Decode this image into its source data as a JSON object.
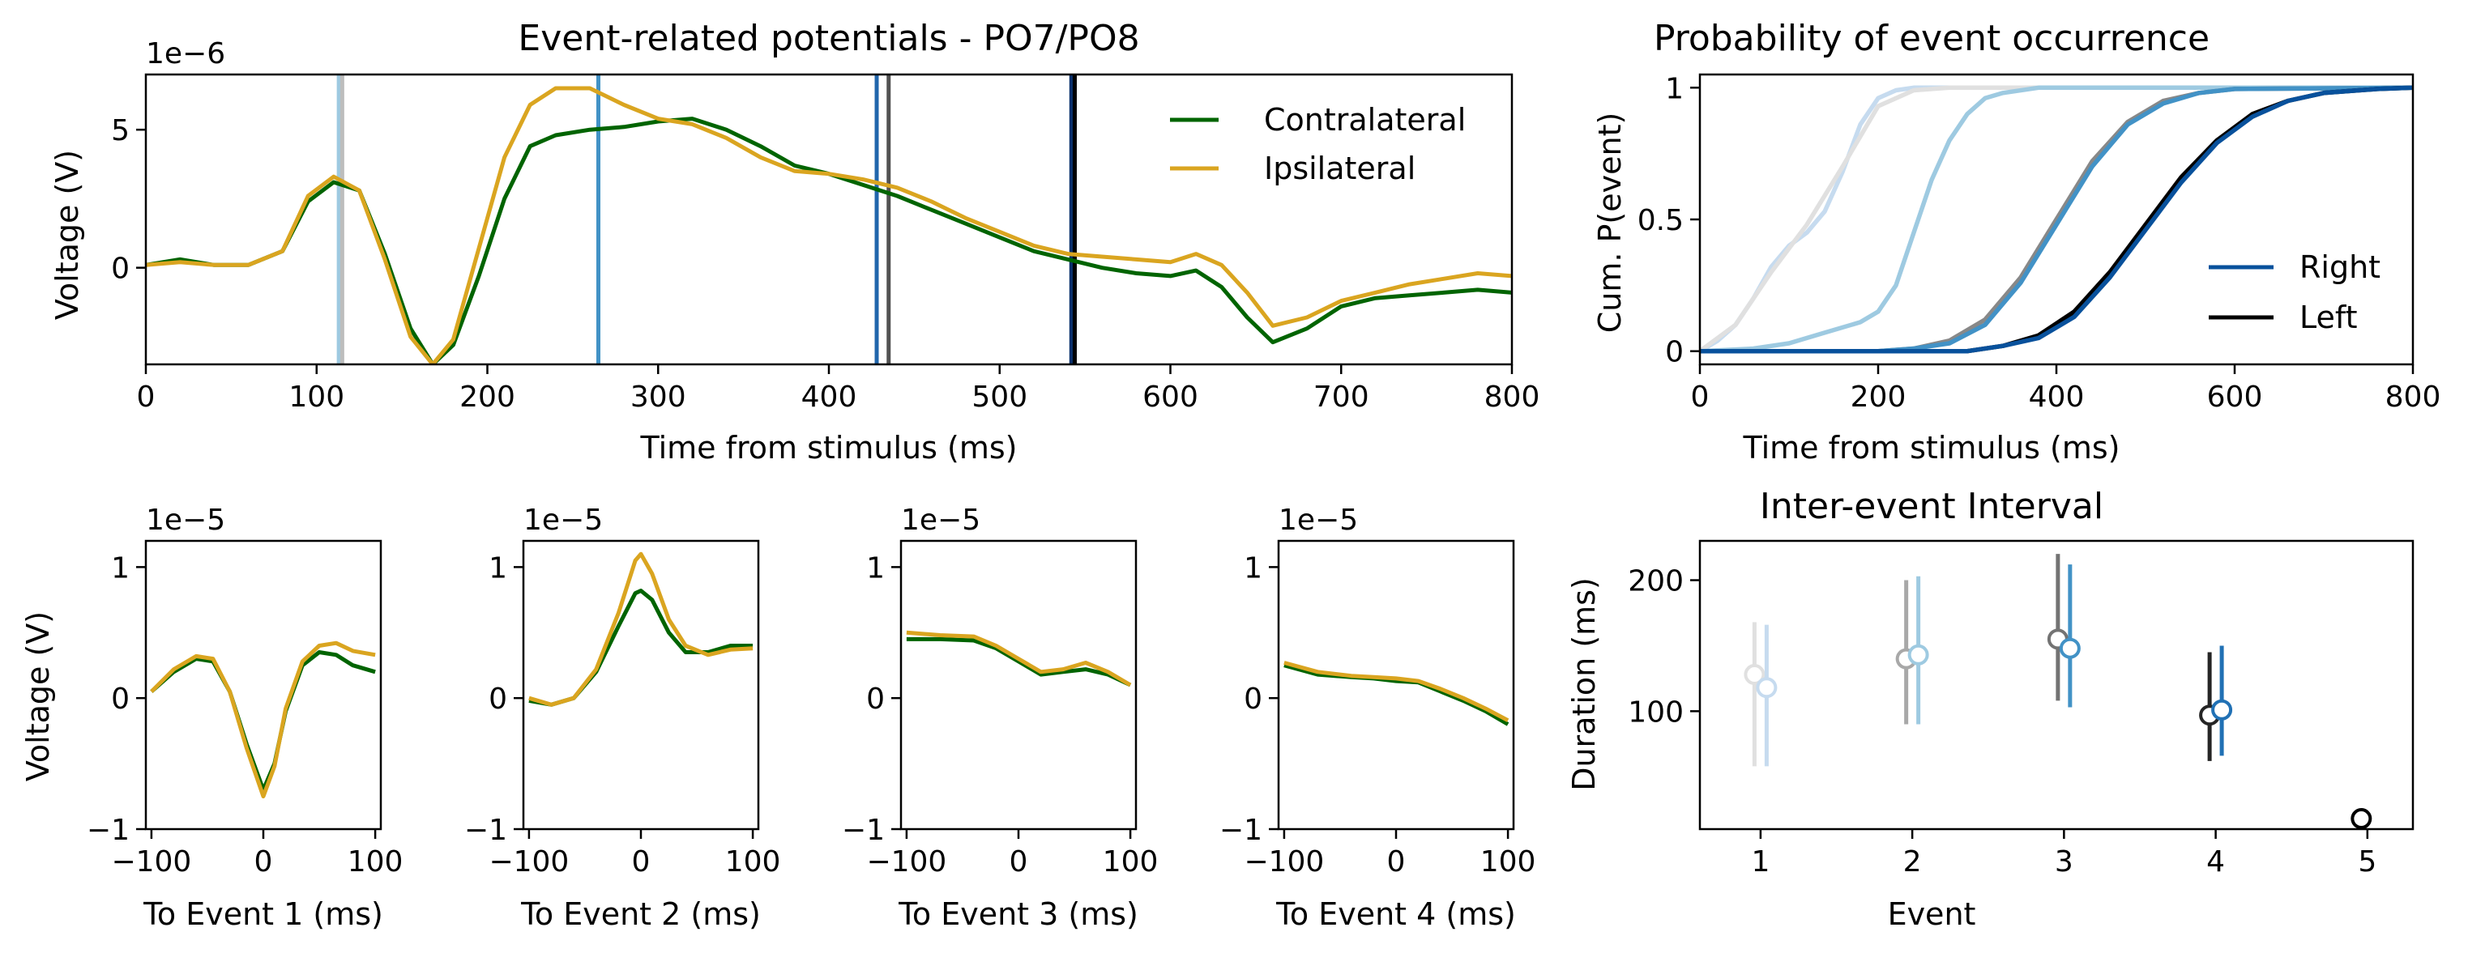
{
  "chart_data": [
    {
      "id": "erp",
      "type": "line",
      "title": "Event-related potentials - PO7/PO8",
      "xlabel": "Time from stimulus (ms)",
      "ylabel": "Voltage (V)",
      "offset_label": "1e−6",
      "xlim": [
        0,
        800
      ],
      "ylim": [
        -3.5,
        7
      ],
      "xticks": [
        0,
        100,
        200,
        300,
        400,
        500,
        600,
        700,
        800
      ],
      "yticks": [
        0,
        5
      ],
      "grid": false,
      "legend": "upper right",
      "series": [
        {
          "name": "Contralateral",
          "color": "#006400",
          "x": [
            0,
            20,
            40,
            60,
            80,
            95,
            110,
            125,
            140,
            155,
            168,
            180,
            195,
            210,
            225,
            240,
            260,
            280,
            300,
            320,
            340,
            360,
            380,
            400,
            420,
            440,
            460,
            480,
            500,
            520,
            540,
            560,
            580,
            600,
            615,
            630,
            645,
            660,
            680,
            700,
            720,
            740,
            760,
            780,
            800
          ],
          "y": [
            0.1,
            0.3,
            0.1,
            0.1,
            0.6,
            2.4,
            3.1,
            2.8,
            0.5,
            -2.2,
            -3.5,
            -2.8,
            -0.3,
            2.5,
            4.4,
            4.8,
            5.0,
            5.1,
            5.3,
            5.4,
            5.0,
            4.4,
            3.7,
            3.4,
            3.0,
            2.6,
            2.1,
            1.6,
            1.1,
            0.6,
            0.3,
            0.0,
            -0.2,
            -0.3,
            -0.1,
            -0.7,
            -1.8,
            -2.7,
            -2.2,
            -1.4,
            -1.1,
            -1.0,
            -0.9,
            -0.8,
            -0.9
          ]
        },
        {
          "name": "Ipsilateral",
          "color": "#DAA520",
          "x": [
            0,
            20,
            40,
            60,
            80,
            95,
            110,
            125,
            140,
            155,
            168,
            180,
            195,
            210,
            225,
            240,
            260,
            280,
            300,
            320,
            340,
            360,
            380,
            400,
            420,
            440,
            460,
            480,
            500,
            520,
            540,
            560,
            580,
            600,
            615,
            630,
            645,
            660,
            680,
            700,
            720,
            740,
            760,
            780,
            800
          ],
          "y": [
            0.1,
            0.2,
            0.1,
            0.1,
            0.6,
            2.6,
            3.3,
            2.8,
            0.3,
            -2.5,
            -3.5,
            -2.6,
            0.7,
            4.0,
            5.9,
            6.5,
            6.5,
            5.9,
            5.4,
            5.2,
            4.7,
            4.0,
            3.5,
            3.4,
            3.2,
            2.9,
            2.4,
            1.8,
            1.3,
            0.8,
            0.5,
            0.4,
            0.3,
            0.2,
            0.5,
            0.1,
            -0.9,
            -2.1,
            -1.8,
            -1.2,
            -0.9,
            -0.6,
            -0.4,
            -0.2,
            -0.3
          ]
        }
      ],
      "event_lines": [
        {
          "x": 113,
          "color": "#9ECAE1"
        },
        {
          "x": 115,
          "color": "#BDBDBD"
        },
        {
          "x": 265,
          "color": "#4292C6"
        },
        {
          "x": 428,
          "color": "#2166AC"
        },
        {
          "x": 435,
          "color": "#525252"
        },
        {
          "x": 542,
          "color": "#08306B"
        },
        {
          "x": 544,
          "color": "#000000"
        }
      ]
    },
    {
      "id": "cumprob",
      "type": "line",
      "title": "Probability of event occurrence",
      "xlabel": "Time from stimulus (ms)",
      "ylabel": "Cum. P(event)",
      "xlim": [
        0,
        800
      ],
      "ylim": [
        -0.05,
        1.05
      ],
      "xticks": [
        0,
        200,
        400,
        600,
        800
      ],
      "yticks": [
        0.0,
        0.5,
        1.0
      ],
      "legend": "lower right",
      "legend_entries": [
        {
          "name": "Right",
          "color": "#08519C"
        },
        {
          "name": "Left",
          "color": "#000000"
        }
      ],
      "series": [
        {
          "color": "#C6DBEF",
          "x": [
            0,
            20,
            40,
            60,
            80,
            100,
            120,
            140,
            160,
            180,
            200,
            220,
            240,
            260,
            800
          ],
          "y": [
            0,
            0.04,
            0.1,
            0.2,
            0.32,
            0.4,
            0.45,
            0.53,
            0.68,
            0.86,
            0.96,
            0.99,
            1.0,
            1.0,
            1.0
          ]
        },
        {
          "color": "#E0E0E0",
          "x": [
            0,
            40,
            80,
            120,
            160,
            200,
            240,
            280,
            800
          ],
          "y": [
            0,
            0.1,
            0.3,
            0.48,
            0.7,
            0.93,
            0.99,
            1.0,
            1.0
          ]
        },
        {
          "color": "#9ECAE1",
          "x": [
            0,
            60,
            100,
            140,
            180,
            200,
            220,
            240,
            260,
            280,
            300,
            320,
            340,
            380,
            420,
            800
          ],
          "y": [
            0,
            0.01,
            0.03,
            0.07,
            0.11,
            0.15,
            0.25,
            0.45,
            0.65,
            0.8,
            0.9,
            0.96,
            0.98,
            1.0,
            1.0,
            1.0
          ]
        },
        {
          "color": "#888888",
          "x": [
            0,
            200,
            240,
            280,
            320,
            360,
            400,
            440,
            480,
            520,
            560,
            600,
            800
          ],
          "y": [
            0,
            0.0,
            0.01,
            0.04,
            0.12,
            0.28,
            0.5,
            0.72,
            0.87,
            0.95,
            0.98,
            0.995,
            1.0
          ]
        },
        {
          "color": "#4292C6",
          "x": [
            0,
            200,
            240,
            280,
            320,
            360,
            400,
            440,
            480,
            520,
            560,
            600,
            800
          ],
          "y": [
            0,
            0.0,
            0.01,
            0.03,
            0.1,
            0.26,
            0.48,
            0.7,
            0.86,
            0.94,
            0.98,
            0.995,
            1.0
          ]
        },
        {
          "color": "#000000",
          "x": [
            0,
            300,
            340,
            380,
            420,
            460,
            500,
            540,
            580,
            620,
            660,
            700,
            760,
            800
          ],
          "y": [
            0,
            0.0,
            0.02,
            0.06,
            0.15,
            0.3,
            0.48,
            0.66,
            0.8,
            0.9,
            0.95,
            0.98,
            0.995,
            1.0
          ]
        },
        {
          "color": "#08519C",
          "x": [
            0,
            300,
            340,
            380,
            420,
            460,
            500,
            540,
            580,
            620,
            660,
            700,
            760,
            800
          ],
          "y": [
            0,
            0.0,
            0.02,
            0.05,
            0.13,
            0.28,
            0.46,
            0.64,
            0.79,
            0.89,
            0.95,
            0.98,
            0.995,
            1.0
          ]
        }
      ]
    },
    {
      "id": "ev1",
      "type": "line",
      "xlabel": "To Event 1 (ms)",
      "ylabel": "Voltage (V)",
      "offset_label": "1e−5",
      "xlim": [
        -105,
        105
      ],
      "ylim": [
        -1,
        1.2
      ],
      "xticks": [
        -100,
        0,
        100
      ],
      "yticks": [
        -1,
        0,
        1
      ],
      "series": [
        {
          "name": "Contralateral",
          "color": "#006400",
          "x": [
            -100,
            -80,
            -60,
            -45,
            -30,
            -15,
            0,
            10,
            20,
            35,
            50,
            65,
            80,
            100
          ],
          "y": [
            0.05,
            0.2,
            0.3,
            0.28,
            0.05,
            -0.35,
            -0.7,
            -0.5,
            -0.1,
            0.25,
            0.35,
            0.33,
            0.25,
            0.2
          ]
        },
        {
          "name": "Ipsilateral",
          "color": "#DAA520",
          "x": [
            -100,
            -80,
            -60,
            -45,
            -30,
            -15,
            0,
            10,
            20,
            35,
            50,
            65,
            80,
            100
          ],
          "y": [
            0.05,
            0.22,
            0.32,
            0.3,
            0.05,
            -0.38,
            -0.75,
            -0.52,
            -0.08,
            0.28,
            0.4,
            0.42,
            0.36,
            0.33
          ]
        }
      ]
    },
    {
      "id": "ev2",
      "type": "line",
      "xlabel": "To Event 2 (ms)",
      "offset_label": "1e−5",
      "xlim": [
        -105,
        105
      ],
      "ylim": [
        -1,
        1.2
      ],
      "xticks": [
        -100,
        0,
        100
      ],
      "yticks": [
        -1,
        0,
        1
      ],
      "series": [
        {
          "name": "Contralateral",
          "color": "#006400",
          "x": [
            -100,
            -80,
            -60,
            -40,
            -20,
            -5,
            0,
            10,
            25,
            40,
            60,
            80,
            100
          ],
          "y": [
            -0.02,
            -0.05,
            0.0,
            0.2,
            0.55,
            0.8,
            0.82,
            0.75,
            0.5,
            0.35,
            0.35,
            0.4,
            0.4
          ]
        },
        {
          "name": "Ipsilateral",
          "color": "#DAA520",
          "x": [
            -100,
            -80,
            -60,
            -40,
            -20,
            -5,
            0,
            10,
            25,
            40,
            60,
            80,
            100
          ],
          "y": [
            0.0,
            -0.05,
            0.0,
            0.22,
            0.65,
            1.05,
            1.1,
            0.95,
            0.6,
            0.4,
            0.33,
            0.37,
            0.38
          ]
        }
      ]
    },
    {
      "id": "ev3",
      "type": "line",
      "xlabel": "To Event 3 (ms)",
      "offset_label": "1e−5",
      "xlim": [
        -105,
        105
      ],
      "ylim": [
        -1,
        1.2
      ],
      "xticks": [
        -100,
        0,
        100
      ],
      "yticks": [
        -1,
        0,
        1
      ],
      "series": [
        {
          "name": "Contralateral",
          "color": "#006400",
          "x": [
            -100,
            -70,
            -40,
            -20,
            0,
            20,
            40,
            60,
            80,
            100
          ],
          "y": [
            0.45,
            0.45,
            0.44,
            0.38,
            0.28,
            0.18,
            0.2,
            0.22,
            0.18,
            0.1
          ]
        },
        {
          "name": "Ipsilateral",
          "color": "#DAA520",
          "x": [
            -100,
            -70,
            -40,
            -20,
            0,
            20,
            40,
            60,
            80,
            100
          ],
          "y": [
            0.5,
            0.48,
            0.47,
            0.4,
            0.3,
            0.2,
            0.22,
            0.27,
            0.2,
            0.1
          ]
        }
      ]
    },
    {
      "id": "ev4",
      "type": "line",
      "xlabel": "To Event 4 (ms)",
      "offset_label": "1e−5",
      "xlim": [
        -105,
        105
      ],
      "ylim": [
        -1,
        1.2
      ],
      "xticks": [
        -100,
        0,
        100
      ],
      "yticks": [
        -1,
        0,
        1
      ],
      "series": [
        {
          "name": "Contralateral",
          "color": "#006400",
          "x": [
            -100,
            -70,
            -40,
            -20,
            0,
            20,
            40,
            60,
            80,
            100
          ],
          "y": [
            0.25,
            0.18,
            0.16,
            0.15,
            0.13,
            0.12,
            0.05,
            -0.02,
            -0.1,
            -0.2
          ]
        },
        {
          "name": "Ipsilateral",
          "color": "#DAA520",
          "x": [
            -100,
            -70,
            -40,
            -20,
            0,
            20,
            40,
            60,
            80,
            100
          ],
          "y": [
            0.27,
            0.2,
            0.17,
            0.16,
            0.15,
            0.13,
            0.07,
            0.0,
            -0.08,
            -0.17
          ]
        }
      ]
    },
    {
      "id": "iei",
      "type": "scatter",
      "title": "Inter-event Interval",
      "xlabel": "Event",
      "ylabel": "Duration (ms)",
      "xlim": [
        0.6,
        5.3
      ],
      "ylim": [
        10,
        230
      ],
      "xticks": [
        1,
        2,
        3,
        4,
        5
      ],
      "yticks": [
        100,
        200
      ],
      "points": [
        {
          "x": 0.96,
          "y": 128,
          "lo": 58,
          "hi": 168,
          "color": "#E0E0E0"
        },
        {
          "x": 1.04,
          "y": 118,
          "lo": 58,
          "hi": 166,
          "color": "#C6DBEF"
        },
        {
          "x": 1.96,
          "y": 140,
          "lo": 90,
          "hi": 200,
          "color": "#A8A8A8"
        },
        {
          "x": 2.04,
          "y": 143,
          "lo": 90,
          "hi": 203,
          "color": "#9ECAE1"
        },
        {
          "x": 2.96,
          "y": 155,
          "lo": 108,
          "hi": 220,
          "color": "#737373"
        },
        {
          "x": 3.04,
          "y": 148,
          "lo": 103,
          "hi": 212,
          "color": "#4292C6"
        },
        {
          "x": 3.96,
          "y": 97,
          "lo": 62,
          "hi": 145,
          "color": "#252525"
        },
        {
          "x": 4.04,
          "y": 101,
          "lo": 66,
          "hi": 150,
          "color": "#2171B5"
        },
        {
          "x": 4.96,
          "y": 18,
          "lo": 18,
          "hi": 18,
          "color": "#000000"
        }
      ]
    }
  ]
}
